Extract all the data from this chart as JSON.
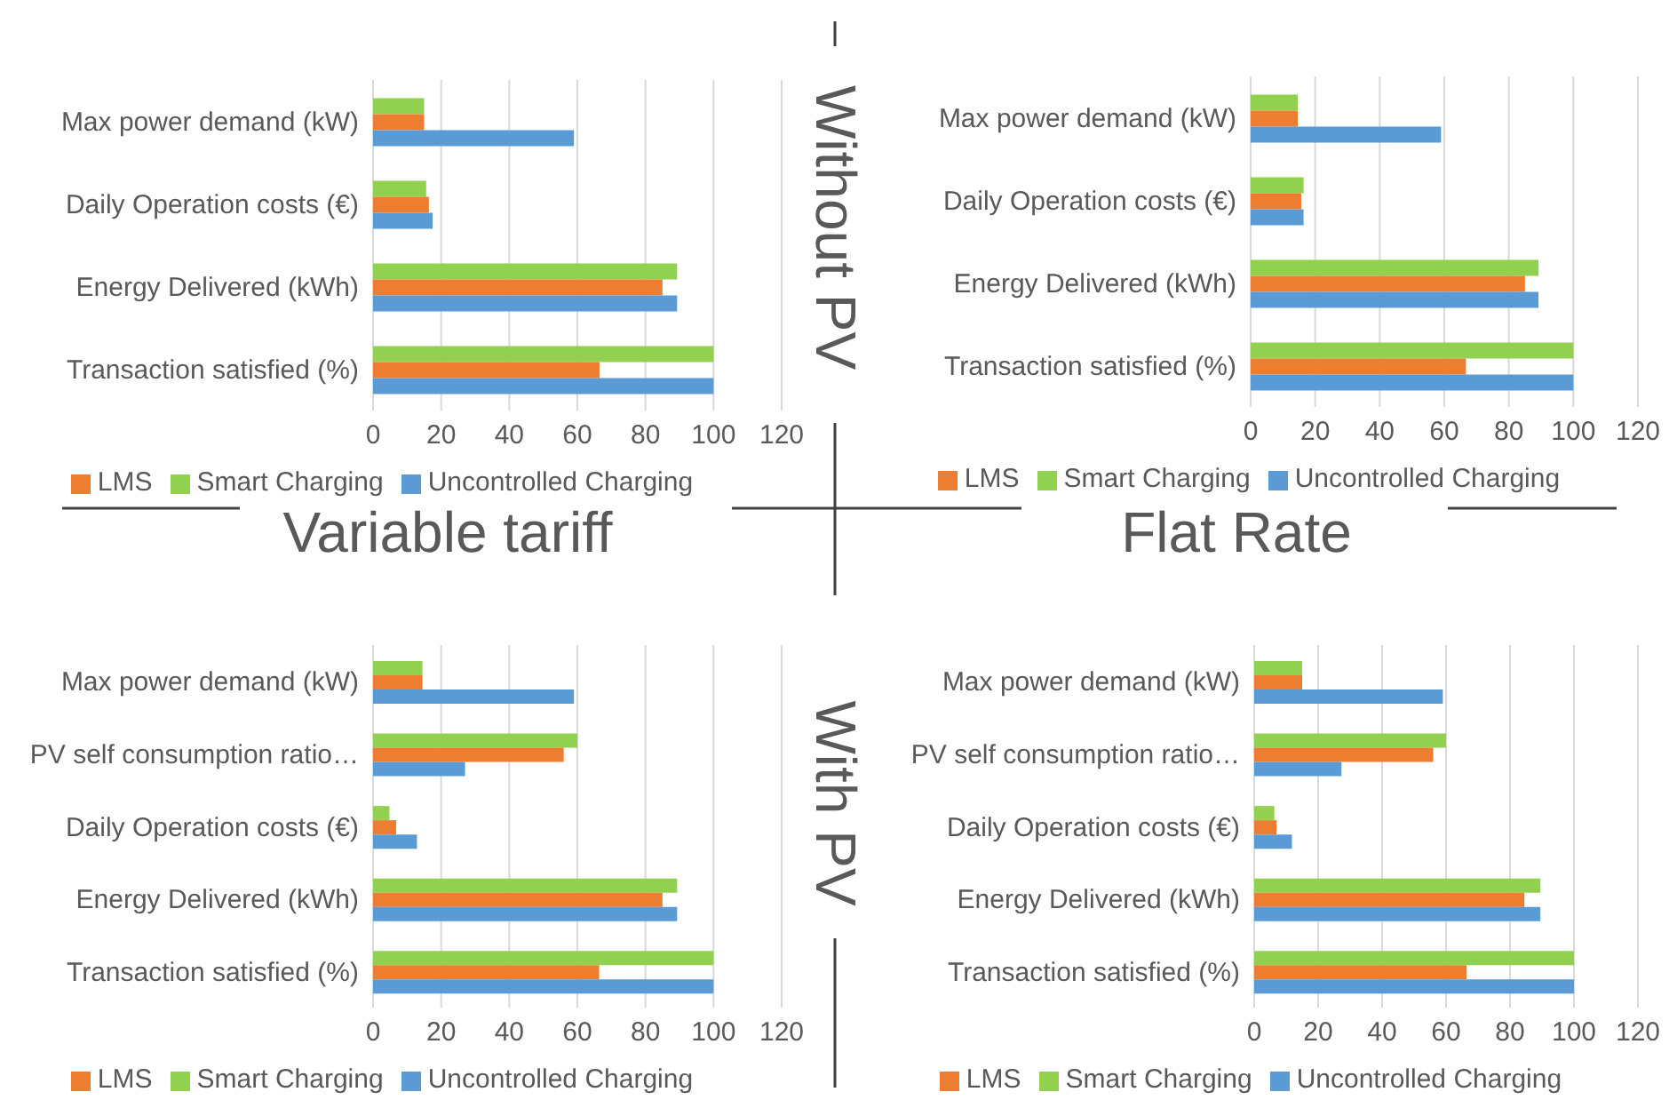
{
  "chart_data": [
    {
      "type": "bar",
      "orientation": "horizontal",
      "annotations": [
        "Without PV",
        "Variable tariff"
      ],
      "categories": [
        "Max power demand (kW)",
        "Daily Operation costs (€)",
        "Energy Delivered (kWh)",
        "Transaction satisfied (%)"
      ],
      "series": [
        {
          "name": "Smart Charging",
          "color": "#92d050",
          "values": [
            15,
            15.6,
            89.3,
            100
          ]
        },
        {
          "name": "LMS",
          "color": "#ed7d31",
          "values": [
            15,
            16.4,
            85,
            66.5
          ]
        },
        {
          "name": "Uncontrolled Charging",
          "color": "#5b9bd5",
          "values": [
            59,
            17.5,
            89.3,
            100
          ]
        }
      ],
      "xlim": [
        0,
        120
      ],
      "xticks": [
        0,
        20,
        40,
        60,
        80,
        100,
        120
      ],
      "grid": "x",
      "legend": "bottom"
    },
    {
      "type": "bar",
      "orientation": "horizontal",
      "annotations": [
        "Flat Rate"
      ],
      "categories": [
        "Max power demand (kW)",
        "Daily Operation costs (€)",
        "Energy Delivered (kWh)",
        "Transaction satisfied (%)"
      ],
      "series": [
        {
          "name": "Smart Charging",
          "color": "#92d050",
          "values": [
            14.6,
            16.4,
            89.2,
            100
          ]
        },
        {
          "name": "LMS",
          "color": "#ed7d31",
          "values": [
            14.6,
            15.7,
            85,
            66.7
          ]
        },
        {
          "name": "Uncontrolled Charging",
          "color": "#5b9bd5",
          "values": [
            59,
            16.4,
            89.2,
            100
          ]
        }
      ],
      "xlim": [
        0,
        120
      ],
      "xticks": [
        0,
        20,
        40,
        60,
        80,
        100,
        120
      ],
      "grid": "x",
      "legend": "bottom"
    },
    {
      "type": "bar",
      "orientation": "horizontal",
      "annotations": [
        "With PV"
      ],
      "categories": [
        "Max power demand (kW)",
        "PV self consumption ratio…",
        "Daily Operation costs (€)",
        "Energy Delivered (kWh)",
        "Transaction satisfied (%)"
      ],
      "series": [
        {
          "name": "Smart Charging",
          "color": "#92d050",
          "values": [
            14.5,
            60,
            4.8,
            89.3,
            100
          ]
        },
        {
          "name": "LMS",
          "color": "#ed7d31",
          "values": [
            14.5,
            56,
            6.8,
            85,
            66.4
          ]
        },
        {
          "name": "Uncontrolled Charging",
          "color": "#5b9bd5",
          "values": [
            59,
            27,
            12.9,
            89.3,
            100
          ]
        }
      ],
      "xlim": [
        0,
        120
      ],
      "xticks": [
        0,
        20,
        40,
        60,
        80,
        100,
        120
      ],
      "grid": "x",
      "legend": "bottom"
    },
    {
      "type": "bar",
      "orientation": "horizontal",
      "categories": [
        "Max power demand (kW)",
        "PV self consumption ratio…",
        "Daily Operation costs (€)",
        "Energy Delivered (kWh)",
        "Transaction satisfied (%)"
      ],
      "series": [
        {
          "name": "Smart Charging",
          "color": "#92d050",
          "values": [
            15,
            60,
            6.3,
            89.5,
            100
          ]
        },
        {
          "name": "LMS",
          "color": "#ed7d31",
          "values": [
            15,
            56,
            7,
            84.5,
            66.4
          ]
        },
        {
          "name": "Uncontrolled Charging",
          "color": "#5b9bd5",
          "values": [
            59,
            27.3,
            11.8,
            89.5,
            100
          ]
        }
      ],
      "xlim": [
        0,
        120
      ],
      "xticks": [
        0,
        20,
        40,
        60,
        80,
        100,
        120
      ],
      "grid": "x",
      "legend": "bottom"
    }
  ]
}
